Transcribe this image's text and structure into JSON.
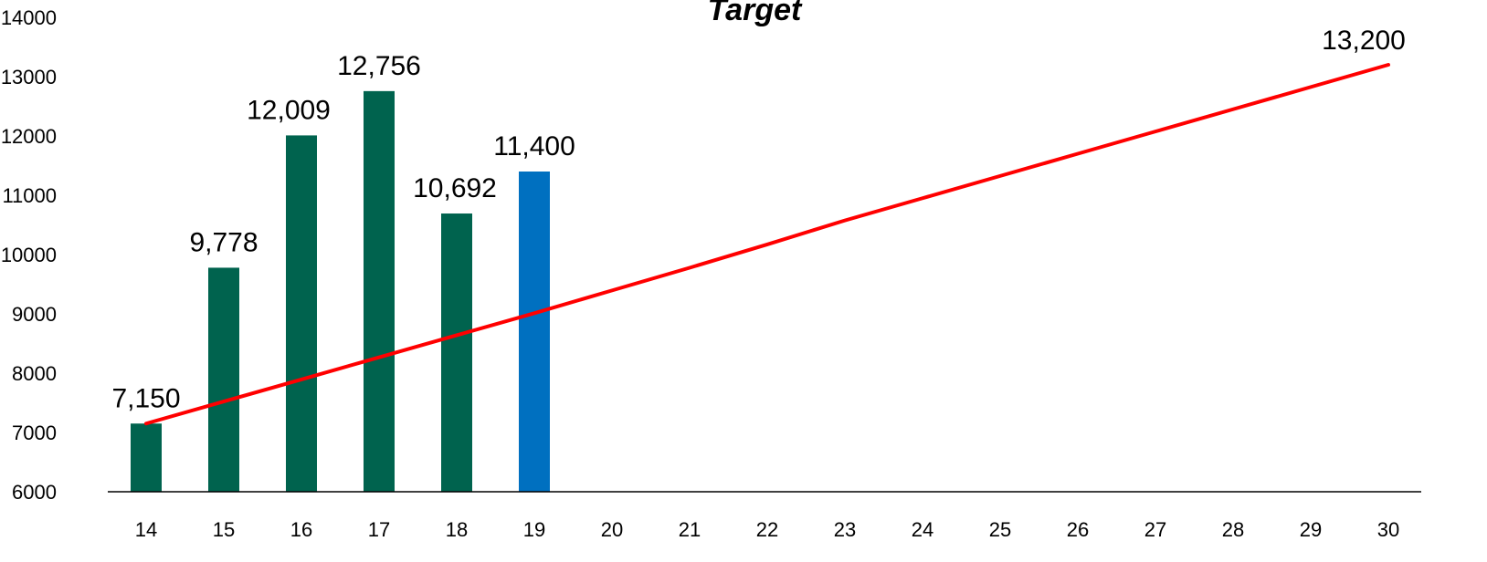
{
  "chart_data": {
    "type": "bar",
    "title": "Target",
    "xlabel": "",
    "ylabel": "",
    "ylim": [
      6000,
      14000
    ],
    "yticks": [
      6000,
      7000,
      8000,
      9000,
      10000,
      11000,
      12000,
      13000,
      14000
    ],
    "categories": [
      "14",
      "15",
      "16",
      "17",
      "18",
      "19",
      "20",
      "21",
      "22",
      "23",
      "24",
      "25",
      "26",
      "27",
      "28",
      "29",
      "30"
    ],
    "grid": false,
    "legend": "none",
    "series": [
      {
        "type": "bar",
        "values": [
          7150,
          9778,
          12009,
          12756,
          10692,
          11400,
          null,
          null,
          null,
          null,
          null,
          null,
          null,
          null,
          null,
          null,
          null
        ],
        "labels": [
          "7,150",
          "9,778",
          "12,009",
          "12,756",
          "10,692",
          "11,400",
          "",
          "",
          "",
          "",
          "",
          "",
          "",
          "",
          "",
          "",
          ""
        ],
        "colors": [
          "#00634e",
          "#00634e",
          "#00634e",
          "#00634e",
          "#00634e",
          "#0070c0"
        ]
      },
      {
        "type": "line",
        "color": "#ff0000",
        "values": [
          7150,
          7522,
          7894,
          8267,
          8639,
          9011,
          9394,
          9777,
          10170,
          10575,
          10950,
          11325,
          11700,
          12075,
          12450,
          12825,
          13200
        ],
        "end_label": "13,200"
      }
    ]
  }
}
